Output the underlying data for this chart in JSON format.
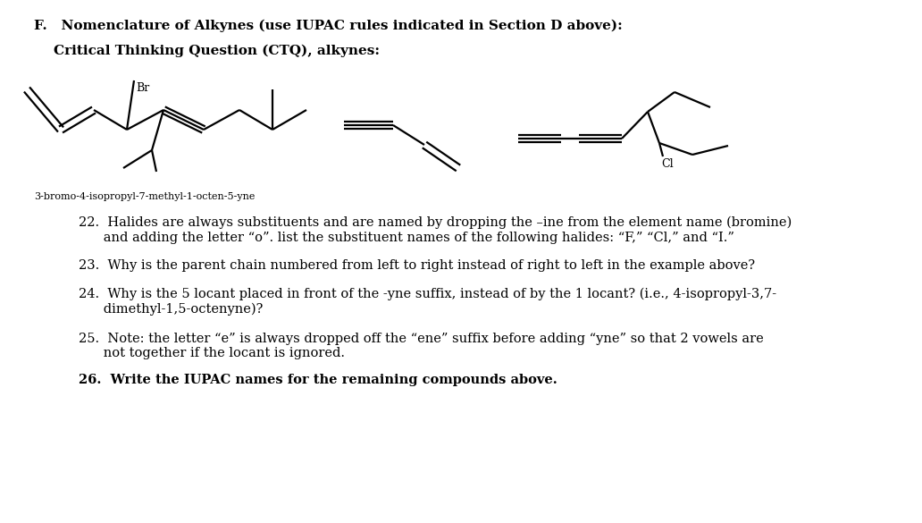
{
  "title_f": "F.   Nomenclature of Alkynes (use IUPAC rules indicated in Section D above):",
  "subtitle": "Critical Thinking Question (CTQ), alkynes:",
  "label_mol1": "3-bromo-4-isopropyl-7-methyl-1-octen-5-yne",
  "label_cl": "Cl",
  "label_br": "Br",
  "q22": "22.  Halides are always substituents and are named by dropping the –ine from the element name (bromine)\n      and adding the letter “o”. list the substituent names of the following halides: “F,” “Cl,” and “I.”",
  "q23": "23.  Why is the parent chain numbered from left to right instead of right to left in the example above?",
  "q24": "24.  Why is the 5 locant placed in front of the -yne suffix, instead of by the 1 locant? (i.e., 4-isopropyl-3,7-\n      dimethyl-1,5-octenyne)?",
  "q25": "25.  Note: the letter “e” is always dropped off the “ene” suffix before adding “yne” so that 2 vowels are\n      not together if the locant is ignored.",
  "q26": "26.  Write the IUPAC names for the remaining compounds above.",
  "bg_color": "#ffffff",
  "text_color": "#000000",
  "lw": 1.6
}
